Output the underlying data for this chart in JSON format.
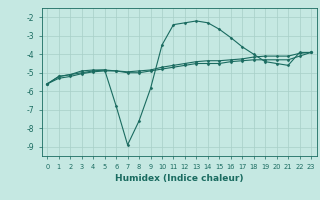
{
  "xlabel": "Humidex (Indice chaleur)",
  "ylabel": "",
  "background_color": "#c5e8e2",
  "grid_color": "#a8cfc8",
  "line_color": "#1a6b60",
  "xlim": [
    -0.5,
    23.5
  ],
  "ylim": [
    -9.5,
    -1.5
  ],
  "yticks": [
    -9,
    -8,
    -7,
    -6,
    -5,
    -4,
    -3,
    -2
  ],
  "xticks": [
    0,
    1,
    2,
    3,
    4,
    5,
    6,
    7,
    8,
    9,
    10,
    11,
    12,
    13,
    14,
    15,
    16,
    17,
    18,
    19,
    20,
    21,
    22,
    23
  ],
  "series": [
    {
      "x": [
        0,
        1,
        2,
        3,
        4,
        5,
        6,
        7,
        8,
        9,
        10,
        11,
        12,
        13,
        14,
        15,
        16,
        17,
        18,
        19,
        20,
        21,
        22,
        23
      ],
      "y": [
        -5.6,
        -5.2,
        -5.1,
        -4.9,
        -4.85,
        -4.85,
        -6.8,
        -8.9,
        -7.6,
        -5.85,
        -3.5,
        -2.4,
        -2.3,
        -2.2,
        -2.3,
        -2.65,
        -3.1,
        -3.6,
        -4.0,
        -4.4,
        -4.5,
        -4.6,
        -3.9,
        -3.9
      ]
    },
    {
      "x": [
        0,
        1,
        2,
        3,
        4,
        5,
        6,
        7,
        8,
        9,
        10,
        11,
        12,
        13,
        14,
        15,
        16,
        17,
        18,
        19,
        20,
        21,
        22,
        23
      ],
      "y": [
        -5.6,
        -5.2,
        -5.1,
        -5.0,
        -4.9,
        -4.85,
        -4.9,
        -4.95,
        -4.9,
        -4.85,
        -4.7,
        -4.6,
        -4.5,
        -4.4,
        -4.35,
        -4.35,
        -4.3,
        -4.25,
        -4.15,
        -4.1,
        -4.1,
        -4.1,
        -3.95,
        -3.9
      ]
    },
    {
      "x": [
        0,
        1,
        2,
        3,
        4,
        5,
        6,
        7,
        8,
        9,
        10,
        11,
        12,
        13,
        14,
        15,
        16,
        17,
        18,
        19,
        20,
        21,
        22,
        23
      ],
      "y": [
        -5.6,
        -5.3,
        -5.2,
        -5.05,
        -4.95,
        -4.9,
        -4.9,
        -5.0,
        -5.0,
        -4.9,
        -4.8,
        -4.7,
        -4.6,
        -4.5,
        -4.5,
        -4.5,
        -4.4,
        -4.35,
        -4.3,
        -4.3,
        -4.3,
        -4.3,
        -4.1,
        -3.9
      ]
    }
  ]
}
